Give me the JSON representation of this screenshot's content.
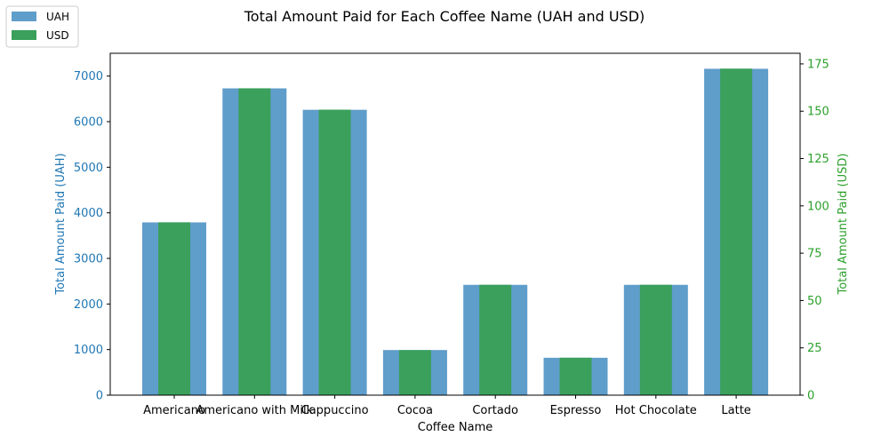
{
  "chart_data": {
    "type": "bar",
    "title": "Total Amount Paid for Each Coffee Name (UAH and USD)",
    "xlabel": "Coffee Name",
    "categories": [
      "Americano",
      "Americano with Milk",
      "Cappuccino",
      "Cocoa",
      "Cortado",
      "Espresso",
      "Hot Chocolate",
      "Latte"
    ],
    "left_axis": {
      "label": "Total Amount Paid (UAH)",
      "ylim": [
        0,
        7500
      ],
      "ticks": [
        0,
        1000,
        2000,
        3000,
        4000,
        5000,
        6000,
        7000
      ],
      "color": "#1f77b4"
    },
    "right_axis": {
      "label": "Total Amount Paid (USD)",
      "ylim": [
        0,
        180.6
      ],
      "ticks": [
        0,
        25,
        50,
        75,
        100,
        125,
        150,
        175
      ],
      "color": "#2ca02c"
    },
    "series": [
      {
        "name": "UAH",
        "axis": "left",
        "color": "#5f9dca",
        "values": [
          3790,
          6730,
          6260,
          990,
          2420,
          820,
          2420,
          7160
        ]
      },
      {
        "name": "USD",
        "axis": "right",
        "color": "#3aa05c",
        "values": [
          91.3,
          162.1,
          150.8,
          23.8,
          58.3,
          19.8,
          58.3,
          172.5
        ]
      }
    ],
    "legend": {
      "placement": "top-left"
    },
    "grid": false
  }
}
